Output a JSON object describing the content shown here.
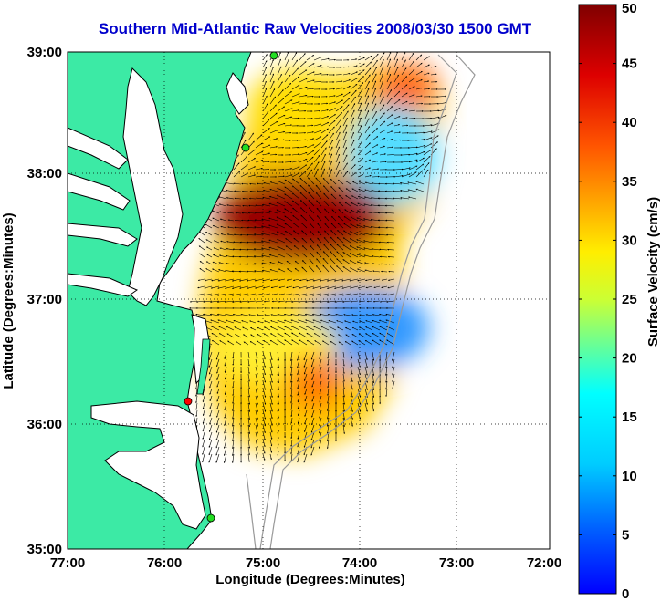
{
  "title": "Southern Mid-Atlantic Raw Velocities 2008/03/30 1500 GMT",
  "x_axis": {
    "label": "Longitude (Degrees:Minutes)",
    "ticks": [
      "77:00",
      "76:00",
      "75:00",
      "74:00",
      "73:00",
      "72:00"
    ]
  },
  "y_axis": {
    "label": "Latitude (Degrees:Minutes)",
    "ticks": [
      "39:00",
      "38:00",
      "37:00",
      "36:00",
      "35:00"
    ]
  },
  "colorbar": {
    "label": "Surface Velocity (cm/s)",
    "ticks": [
      "0",
      "5",
      "10",
      "15",
      "20",
      "25",
      "30",
      "35",
      "40",
      "45",
      "50"
    ],
    "colormap": "jet",
    "range": [
      0,
      50
    ]
  },
  "colors": {
    "land": "#3ceaa5",
    "ocean": "#ffffff",
    "title": "#0000cc",
    "station_active": "#22dd22",
    "station_inactive": "#ff0000",
    "vectors": "#000000",
    "bathymetry": "#999999"
  },
  "stations": [
    {
      "status": "active"
    },
    {
      "status": "active"
    },
    {
      "status": "inactive"
    },
    {
      "status": "active"
    }
  ]
}
